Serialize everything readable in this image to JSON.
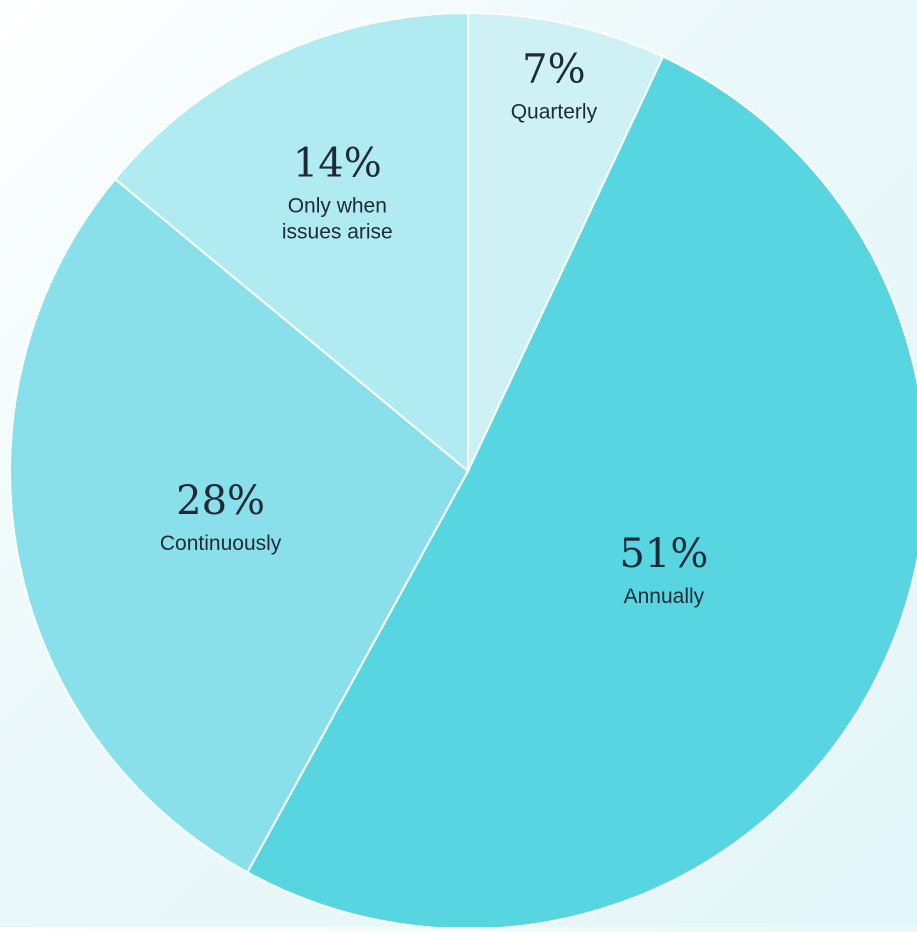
{
  "chart_data": {
    "type": "pie",
    "start_angle_deg": 0,
    "direction": "clockwise",
    "slices": [
      {
        "label": "Quarterly",
        "lines": [
          "Quarterly"
        ],
        "value": 7,
        "pct_label": "7%",
        "color": "#cdf1f5"
      },
      {
        "label": "Annually",
        "lines": [
          "Annually"
        ],
        "value": 51,
        "pct_label": "51%",
        "color": "#57d6e2"
      },
      {
        "label": "Continuously",
        "lines": [
          "Continuously"
        ],
        "value": 28,
        "pct_label": "28%",
        "color": "#89e0ea"
      },
      {
        "label": "Only when issues arise",
        "lines": [
          "Only when",
          "issues arise"
        ],
        "value": 14,
        "pct_label": "14%",
        "color": "#b0ebf2"
      }
    ]
  }
}
